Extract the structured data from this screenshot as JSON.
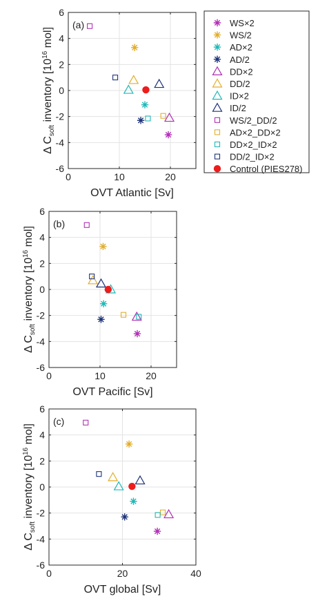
{
  "chart_data": [
    {
      "type": "scatter",
      "panel_label": "(a)",
      "xlabel": "OVT Atlantic [Sv]",
      "ylabel": "Δ C_soft inventory [10^16 mol]",
      "xlim": [
        0,
        25
      ],
      "ylim": [
        -6,
        6
      ],
      "xticks": [
        0,
        10,
        20
      ],
      "yticks": [
        -6,
        -4,
        -2,
        0,
        2,
        4,
        6
      ],
      "grid": true,
      "points": [
        {
          "series": "WS×2",
          "x": 19.6,
          "y": -3.4
        },
        {
          "series": "WS/2",
          "x": 13.0,
          "y": 3.3
        },
        {
          "series": "AD×2",
          "x": 15.0,
          "y": -1.1
        },
        {
          "series": "AD/2",
          "x": 14.2,
          "y": -2.3
        },
        {
          "series": "DD×2",
          "x": 19.8,
          "y": -2.1
        },
        {
          "series": "DD/2",
          "x": 12.8,
          "y": 0.8
        },
        {
          "series": "ID×2",
          "x": 11.8,
          "y": 0.05
        },
        {
          "series": "ID/2",
          "x": 17.8,
          "y": 0.5
        },
        {
          "series": "WS/2_DD/2",
          "x": 4.2,
          "y": 4.95
        },
        {
          "series": "AD×2_DD×2",
          "x": 18.6,
          "y": -1.95
        },
        {
          "series": "DD×2_ID×2",
          "x": 15.6,
          "y": -2.15
        },
        {
          "series": "DD/2_ID×2",
          "x": 9.2,
          "y": 1.0
        },
        {
          "series": "Control (PIES278)",
          "x": 15.2,
          "y": 0.05
        }
      ]
    },
    {
      "type": "scatter",
      "panel_label": "(b)",
      "xlabel": "OVT Pacific [Sv]",
      "ylabel": "Δ C_soft inventory [10^16 mol]",
      "xlim": [
        0,
        25
      ],
      "ylim": [
        -6,
        6
      ],
      "xticks": [
        0,
        10,
        20
      ],
      "yticks": [
        -6,
        -4,
        -2,
        0,
        2,
        4,
        6
      ],
      "grid": true,
      "points": [
        {
          "series": "WS×2",
          "x": 17.3,
          "y": -3.4
        },
        {
          "series": "WS/2",
          "x": 10.6,
          "y": 3.3
        },
        {
          "series": "AD×2",
          "x": 10.7,
          "y": -1.1
        },
        {
          "series": "AD/2",
          "x": 10.2,
          "y": -2.3
        },
        {
          "series": "DD×2",
          "x": 17.2,
          "y": -2.1
        },
        {
          "series": "DD/2",
          "x": 8.6,
          "y": 0.7
        },
        {
          "series": "ID×2",
          "x": 12.1,
          "y": 0.0
        },
        {
          "series": "ID/2",
          "x": 10.2,
          "y": 0.45
        },
        {
          "series": "WS/2_DD/2",
          "x": 7.4,
          "y": 4.95
        },
        {
          "series": "AD×2_DD×2",
          "x": 14.6,
          "y": -1.95
        },
        {
          "series": "DD×2_ID×2",
          "x": 17.6,
          "y": -2.1
        },
        {
          "series": "DD/2_ID×2",
          "x": 8.4,
          "y": 1.0
        },
        {
          "series": "Control (PIES278)",
          "x": 11.6,
          "y": 0.0
        }
      ]
    },
    {
      "type": "scatter",
      "panel_label": "(c)",
      "xlabel": "OVT global [Sv]",
      "ylabel": "Δ C_soft inventory [10^16 mol]",
      "xlim": [
        0,
        40
      ],
      "ylim": [
        -6,
        6
      ],
      "xticks": [
        0,
        20,
        40
      ],
      "yticks": [
        -6,
        -4,
        -2,
        0,
        2,
        4,
        6
      ],
      "grid": true,
      "points": [
        {
          "series": "WS×2",
          "x": 29.5,
          "y": -3.4
        },
        {
          "series": "WS/2",
          "x": 21.8,
          "y": 3.3
        },
        {
          "series": "AD×2",
          "x": 23.0,
          "y": -1.1
        },
        {
          "series": "AD/2",
          "x": 20.6,
          "y": -2.3
        },
        {
          "series": "DD×2",
          "x": 32.6,
          "y": -2.1
        },
        {
          "series": "DD/2",
          "x": 17.4,
          "y": 0.75
        },
        {
          "series": "ID×2",
          "x": 19.0,
          "y": 0.05
        },
        {
          "series": "ID/2",
          "x": 24.8,
          "y": 0.5
        },
        {
          "series": "WS/2_DD/2",
          "x": 10.0,
          "y": 4.95
        },
        {
          "series": "AD×2_DD×2",
          "x": 31.0,
          "y": -1.95
        },
        {
          "series": "DD×2_ID×2",
          "x": 29.6,
          "y": -2.15
        },
        {
          "series": "DD/2_ID×2",
          "x": 13.6,
          "y": 1.0
        },
        {
          "series": "Control (PIES278)",
          "x": 22.6,
          "y": 0.05
        }
      ]
    }
  ],
  "legend": {
    "placement": "right of panel (a)",
    "entries": [
      {
        "label": "WS×2",
        "marker": "asterisk",
        "color": "#b12fb5"
      },
      {
        "label": "WS/2",
        "marker": "asterisk",
        "color": "#e3ad2a"
      },
      {
        "label": "AD×2",
        "marker": "asterisk",
        "color": "#1fb8b8"
      },
      {
        "label": "AD/2",
        "marker": "asterisk",
        "color": "#1d3277"
      },
      {
        "label": "DD×2",
        "marker": "triangle",
        "color": "#b12fb5"
      },
      {
        "label": "DD/2",
        "marker": "triangle",
        "color": "#e3ad2a"
      },
      {
        "label": "ID×2",
        "marker": "triangle",
        "color": "#1fb8b8"
      },
      {
        "label": "ID/2",
        "marker": "triangle",
        "color": "#1d3277"
      },
      {
        "label": "WS/2_DD/2",
        "marker": "square",
        "color": "#b12fb5"
      },
      {
        "label": "AD×2_DD×2",
        "marker": "square",
        "color": "#e3ad2a"
      },
      {
        "label": "DD×2_ID×2",
        "marker": "square",
        "color": "#1fb8b8"
      },
      {
        "label": "DD/2_ID×2",
        "marker": "square",
        "color": "#1d3277"
      },
      {
        "label": "Control (PIES278)",
        "marker": "filled-circle",
        "color": "#ee1c1c"
      }
    ]
  }
}
